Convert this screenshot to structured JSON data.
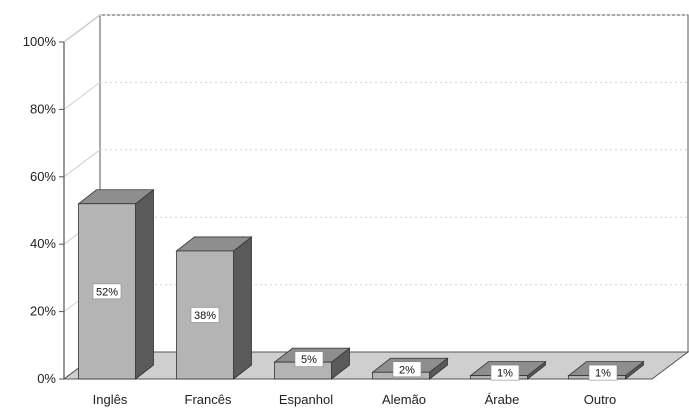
{
  "chart_data": {
    "type": "bar",
    "style": "3d-column",
    "title": "",
    "xlabel": "",
    "ylabel": "",
    "categories": [
      "Inglês",
      "Francês",
      "Espanhol",
      "Alemão",
      "Árabe",
      "Outro"
    ],
    "values": [
      52,
      38,
      5,
      2,
      1,
      1
    ],
    "value_labels": [
      "52%",
      "38%",
      "5%",
      "2%",
      "1%",
      "1%"
    ],
    "ylim": [
      0,
      100
    ],
    "yticks": [
      0,
      20,
      40,
      60,
      80,
      100
    ],
    "ytick_labels": [
      "0%",
      "20%",
      "40%",
      "60%",
      "80%",
      "100%"
    ],
    "grid": true,
    "legend": "none"
  },
  "colors": {
    "bar_front": "#b4b4b4",
    "bar_top": "#8e8e8e",
    "bar_side": "#5a5a5a",
    "floor": "#cfcfcf",
    "wall": "#ffffff",
    "axis": "#555555",
    "grid": "#d0d0d0",
    "label_box": "#ffffff"
  }
}
